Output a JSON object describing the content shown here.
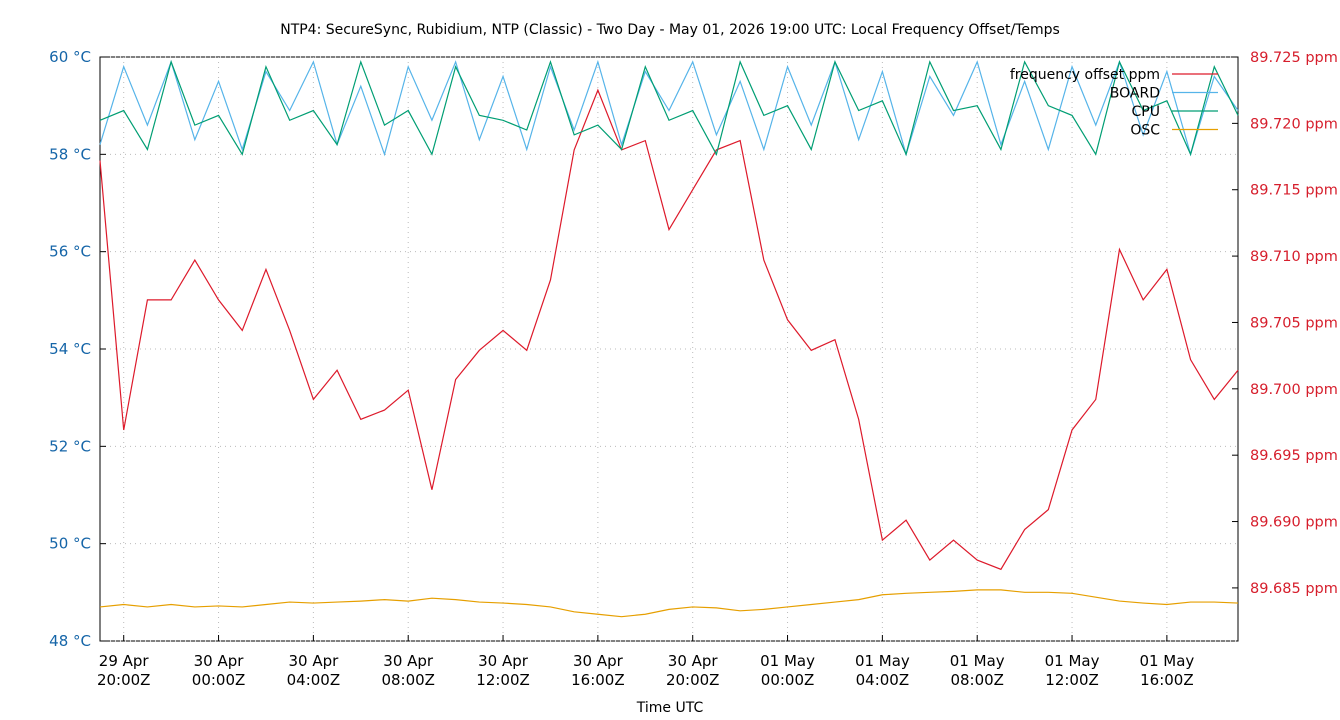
{
  "chart_data": {
    "type": "line",
    "title": "NTP4: SecureSync, Rubidium, NTP (Classic) - Two Day - May 01, 2026 19:00 UTC: Local Frequency Offset/Temps",
    "xlabel": "Time UTC",
    "x": [
      "2026-04-29T19:00:00Z",
      "2026-04-29T20:00:00Z",
      "2026-04-29T21:00:00Z",
      "2026-04-29T22:00:00Z",
      "2026-04-29T23:00:00Z",
      "2026-04-30T00:00:00Z",
      "2026-04-30T01:00:00Z",
      "2026-04-30T02:00:00Z",
      "2026-04-30T03:00:00Z",
      "2026-04-30T04:00:00Z",
      "2026-04-30T05:00:00Z",
      "2026-04-30T06:00:00Z",
      "2026-04-30T07:00:00Z",
      "2026-04-30T08:00:00Z",
      "2026-04-30T09:00:00Z",
      "2026-04-30T10:00:00Z",
      "2026-04-30T11:00:00Z",
      "2026-04-30T12:00:00Z",
      "2026-04-30T13:00:00Z",
      "2026-04-30T14:00:00Z",
      "2026-04-30T15:00:00Z",
      "2026-04-30T16:00:00Z",
      "2026-04-30T17:00:00Z",
      "2026-04-30T18:00:00Z",
      "2026-04-30T19:00:00Z",
      "2026-04-30T20:00:00Z",
      "2026-04-30T21:00:00Z",
      "2026-04-30T22:00:00Z",
      "2026-04-30T23:00:00Z",
      "2026-05-01T00:00:00Z",
      "2026-05-01T01:00:00Z",
      "2026-05-01T02:00:00Z",
      "2026-05-01T03:00:00Z",
      "2026-05-01T04:00:00Z",
      "2026-05-01T05:00:00Z",
      "2026-05-01T06:00:00Z",
      "2026-05-01T07:00:00Z",
      "2026-05-01T08:00:00Z",
      "2026-05-01T09:00:00Z",
      "2026-05-01T10:00:00Z",
      "2026-05-01T11:00:00Z",
      "2026-05-01T12:00:00Z",
      "2026-05-01T13:00:00Z",
      "2026-05-01T14:00:00Z",
      "2026-05-01T15:00:00Z",
      "2026-05-01T16:00:00Z",
      "2026-05-01T17:00:00Z",
      "2026-05-01T18:00:00Z",
      "2026-05-01T19:00:00Z"
    ],
    "xlim": [
      "2026-04-29T19:00:00Z",
      "2026-05-01T19:00:00Z"
    ],
    "xticks": [
      {
        "value": "2026-04-29T20:00:00Z",
        "label": "29 Apr\n20:00Z"
      },
      {
        "value": "2026-04-30T00:00:00Z",
        "label": "30 Apr\n00:00Z"
      },
      {
        "value": "2026-04-30T04:00:00Z",
        "label": "30 Apr\n04:00Z"
      },
      {
        "value": "2026-04-30T08:00:00Z",
        "label": "30 Apr\n08:00Z"
      },
      {
        "value": "2026-04-30T12:00:00Z",
        "label": "30 Apr\n12:00Z"
      },
      {
        "value": "2026-04-30T16:00:00Z",
        "label": "30 Apr\n16:00Z"
      },
      {
        "value": "2026-04-30T20:00:00Z",
        "label": "30 Apr\n20:00Z"
      },
      {
        "value": "2026-05-01T00:00:00Z",
        "label": "01 May\n00:00Z"
      },
      {
        "value": "2026-05-01T04:00:00Z",
        "label": "01 May\n04:00Z"
      },
      {
        "value": "2026-05-01T08:00:00Z",
        "label": "01 May\n08:00Z"
      },
      {
        "value": "2026-05-01T12:00:00Z",
        "label": "01 May\n12:00Z"
      },
      {
        "value": "2026-05-01T16:00:00Z",
        "label": "01 May\n16:00Z"
      }
    ],
    "ylim": [
      48,
      60
    ],
    "yticks": [
      {
        "value": 48,
        "label": "48 °C"
      },
      {
        "value": 50,
        "label": "50 °C"
      },
      {
        "value": 52,
        "label": "52 °C"
      },
      {
        "value": 54,
        "label": "54 °C"
      },
      {
        "value": 56,
        "label": "56 °C"
      },
      {
        "value": 58,
        "label": "58 °C"
      },
      {
        "value": 60,
        "label": "60 °C"
      }
    ],
    "y2lim": [
      89.681,
      89.725
    ],
    "y2ticks": [
      {
        "value": 89.685,
        "label": "89.685 ppm"
      },
      {
        "value": 89.69,
        "label": "89.690 ppm"
      },
      {
        "value": 89.695,
        "label": "89.695 ppm"
      },
      {
        "value": 89.7,
        "label": "89.700 ppm"
      },
      {
        "value": 89.705,
        "label": "89.705 ppm"
      },
      {
        "value": 89.71,
        "label": "89.710 ppm"
      },
      {
        "value": 89.715,
        "label": "89.715 ppm"
      },
      {
        "value": 89.72,
        "label": "89.720 ppm"
      },
      {
        "value": 89.725,
        "label": "89.725 ppm"
      }
    ],
    "grid": true,
    "legend": "top-right",
    "series": [
      {
        "name": "frequency offset ppm",
        "color": "#dd1a2b",
        "axis": "y2",
        "values": [
          89.7172,
          89.6969,
          89.7067,
          89.7067,
          89.7097,
          89.7067,
          89.7044,
          89.709,
          89.7044,
          89.6992,
          89.7014,
          89.6977,
          89.6984,
          89.6999,
          89.6924,
          89.7007,
          89.7029,
          89.7044,
          89.7029,
          89.7082,
          89.718,
          89.7225,
          89.718,
          89.7187,
          89.712,
          89.715,
          89.718,
          89.7187,
          89.7097,
          89.7052,
          89.7029,
          89.7037,
          89.6977,
          89.6886,
          89.6901,
          89.6871,
          89.6886,
          89.6871,
          89.6864,
          89.6894,
          89.6909,
          89.6969,
          89.6992,
          89.7105,
          89.7067,
          89.709,
          89.7022,
          89.6992,
          89.7014
        ]
      },
      {
        "name": "BOARD",
        "color": "#56b4e9",
        "axis": "y",
        "values": [
          58.2,
          59.8,
          58.6,
          59.9,
          58.3,
          59.5,
          58.1,
          59.7,
          58.9,
          59.9,
          58.2,
          59.4,
          58.0,
          59.8,
          58.7,
          59.9,
          58.3,
          59.6,
          58.1,
          59.8,
          58.5,
          59.9,
          58.2,
          59.7,
          58.9,
          59.9,
          58.4,
          59.5,
          58.1,
          59.8,
          58.6,
          59.9,
          58.3,
          59.7,
          58.0,
          59.6,
          58.8,
          59.9,
          58.2,
          59.5,
          58.1,
          59.8,
          58.6,
          59.9,
          58.4,
          59.7,
          58.0,
          59.6,
          58.9
        ]
      },
      {
        "name": "CPU",
        "color": "#009e73",
        "axis": "y",
        "values": [
          58.7,
          58.9,
          58.1,
          59.9,
          58.6,
          58.8,
          58.0,
          59.8,
          58.7,
          58.9,
          58.2,
          59.9,
          58.6,
          58.9,
          58.0,
          59.8,
          58.8,
          58.7,
          58.5,
          59.9,
          58.4,
          58.6,
          58.1,
          59.8,
          58.7,
          58.9,
          58.0,
          59.9,
          58.8,
          59.0,
          58.1,
          59.9,
          58.9,
          59.1,
          58.0,
          59.9,
          58.9,
          59.0,
          58.1,
          59.9,
          59.0,
          58.8,
          58.0,
          59.9,
          58.9,
          59.1,
          58.0,
          59.8,
          58.8
        ]
      },
      {
        "name": "OSC",
        "color": "#e69f00",
        "axis": "y",
        "values": [
          48.7,
          48.75,
          48.7,
          48.75,
          48.7,
          48.72,
          48.7,
          48.75,
          48.8,
          48.78,
          48.8,
          48.82,
          48.85,
          48.82,
          48.88,
          48.85,
          48.8,
          48.78,
          48.75,
          48.7,
          48.6,
          48.55,
          48.5,
          48.55,
          48.65,
          48.7,
          48.68,
          48.62,
          48.65,
          48.7,
          48.75,
          48.8,
          48.85,
          48.95,
          48.98,
          49.0,
          49.02,
          49.05,
          49.05,
          49.0,
          49.0,
          48.98,
          48.9,
          48.82,
          48.78,
          48.75,
          48.8,
          48.8,
          48.78
        ]
      }
    ]
  }
}
